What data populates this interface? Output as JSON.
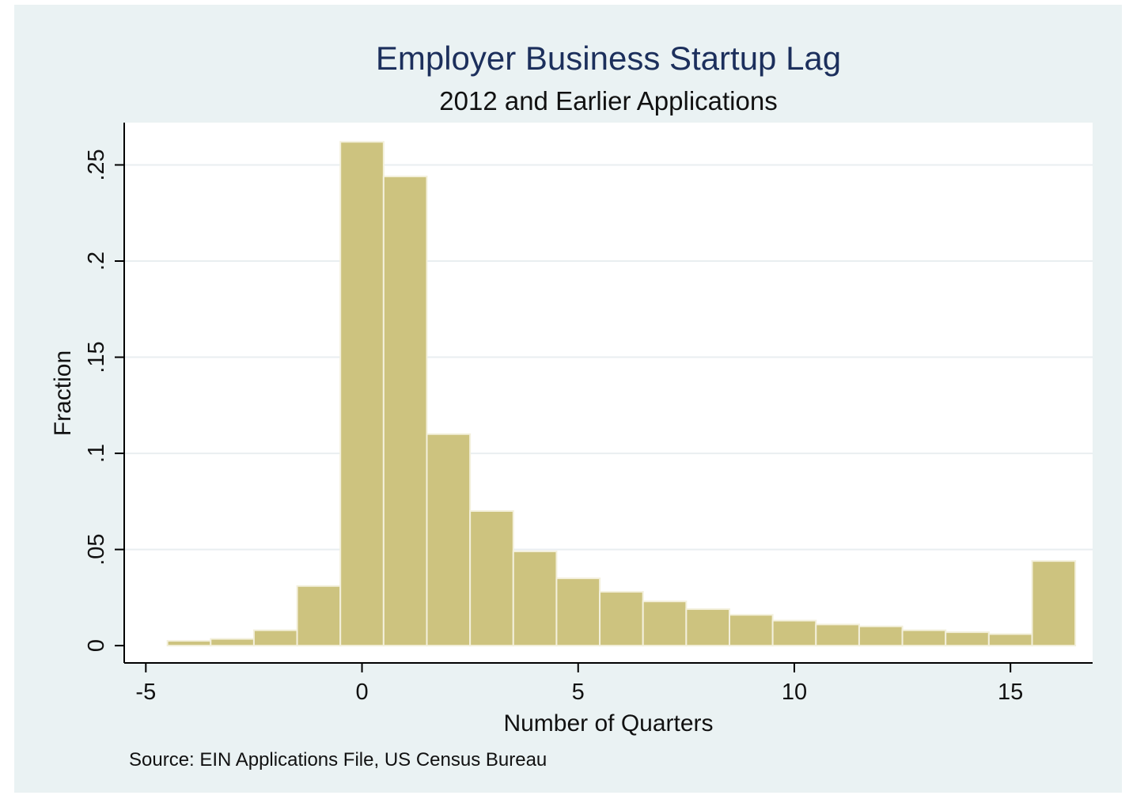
{
  "colors": {
    "outer_background": "#eaf2f3",
    "plot_background": "#ffffff",
    "bar_fill": "#cdc37f",
    "bar_edge": "#f3f0dc",
    "title_color": "#1c2f5c",
    "text_color": "#111111",
    "grid_color": "#e9eef0",
    "axis_color": "#000000"
  },
  "chart_data": {
    "type": "bar",
    "subtype": "histogram",
    "title": "Employer Business Startup Lag",
    "subtitle": "2012 and Earlier Applications",
    "xlabel": "Number of Quarters",
    "ylabel": "Fraction",
    "note": "Source: EIN Applications File, US Census Bureau",
    "xlim": [
      -5.5,
      16.9
    ],
    "ylim": [
      -0.009,
      0.272
    ],
    "x_ticks": [
      -5,
      0,
      5,
      10,
      15
    ],
    "x_tick_labels": [
      "-5",
      "0",
      "5",
      "10",
      "15"
    ],
    "y_ticks": [
      0,
      0.05,
      0.1,
      0.15,
      0.2,
      0.25
    ],
    "y_tick_labels": [
      "0",
      ".05",
      ".1",
      ".15",
      ".2",
      ".25"
    ],
    "grid": true,
    "bin_width": 1,
    "bins": [
      {
        "x": -4,
        "value": 0.0025
      },
      {
        "x": -3,
        "value": 0.0035
      },
      {
        "x": -2,
        "value": 0.008
      },
      {
        "x": -1,
        "value": 0.031
      },
      {
        "x": 0,
        "value": 0.262
      },
      {
        "x": 1,
        "value": 0.244
      },
      {
        "x": 2,
        "value": 0.11
      },
      {
        "x": 3,
        "value": 0.07
      },
      {
        "x": 4,
        "value": 0.049
      },
      {
        "x": 5,
        "value": 0.035
      },
      {
        "x": 6,
        "value": 0.028
      },
      {
        "x": 7,
        "value": 0.023
      },
      {
        "x": 8,
        "value": 0.019
      },
      {
        "x": 9,
        "value": 0.016
      },
      {
        "x": 10,
        "value": 0.013
      },
      {
        "x": 11,
        "value": 0.011
      },
      {
        "x": 12,
        "value": 0.01
      },
      {
        "x": 13,
        "value": 0.008
      },
      {
        "x": 14,
        "value": 0.007
      },
      {
        "x": 15,
        "value": 0.006
      },
      {
        "x": 16,
        "value": 0.044
      }
    ]
  }
}
